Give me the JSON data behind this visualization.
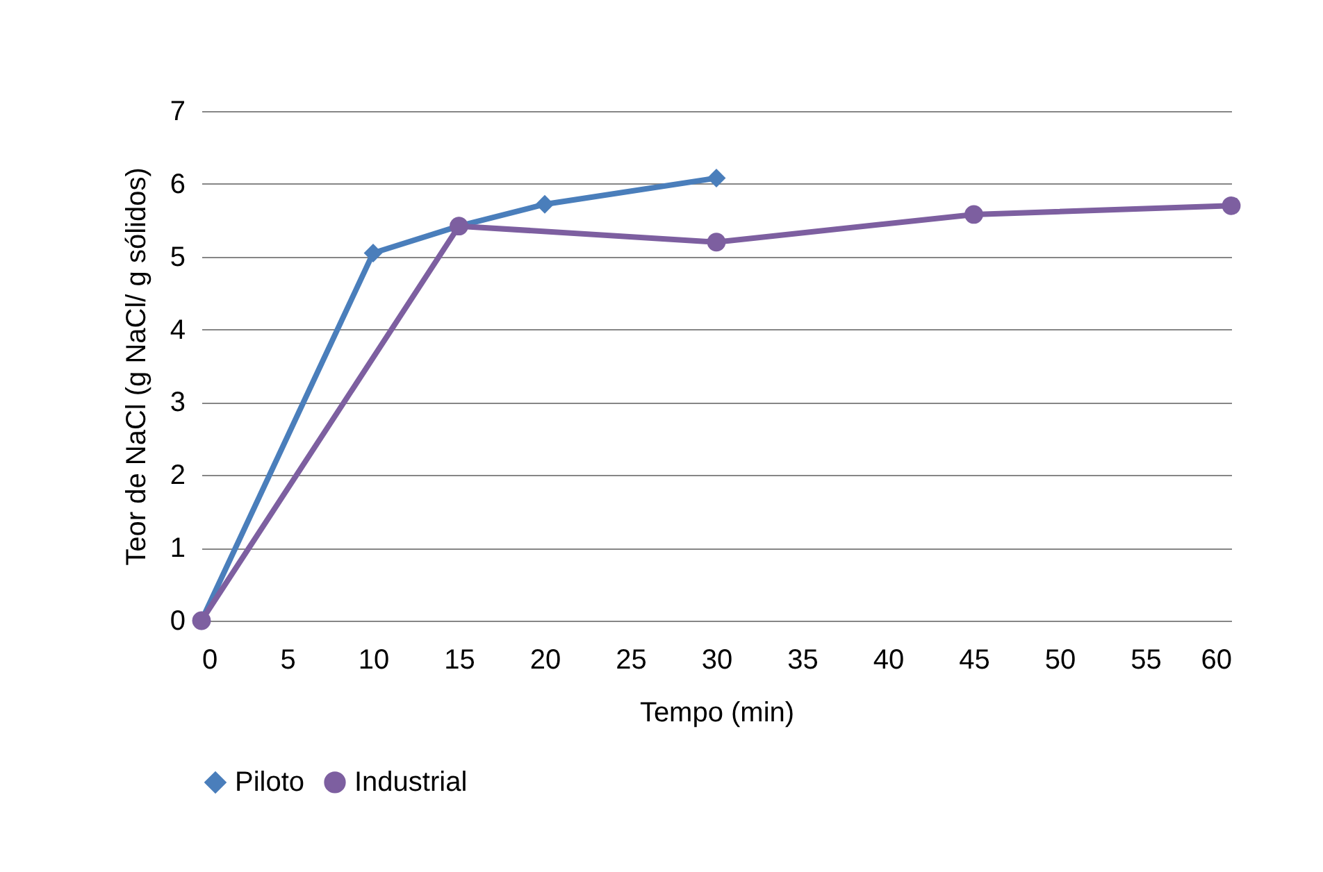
{
  "chart_data": {
    "type": "line",
    "xlabel": "Tempo (min)",
    "ylabel": "Teor de NaCl (g NaCl/ g sólidos)",
    "xlim": [
      0,
      60
    ],
    "xticks": [
      0,
      5,
      10,
      15,
      20,
      25,
      30,
      35,
      40,
      45,
      50,
      55,
      60
    ],
    "ylim": [
      0,
      7
    ],
    "yticks": [
      0,
      1,
      2,
      3,
      4,
      5,
      6,
      7
    ],
    "grid": "y",
    "legend": "bottom",
    "series": [
      {
        "name": "Piloto",
        "color": "#4a7ebb",
        "marker": "diamond",
        "x": [
          0,
          10,
          15,
          20,
          30
        ],
        "values": [
          0,
          5.05,
          5.42,
          5.72,
          6.08
        ]
      },
      {
        "name": "Industrial",
        "color": "#7d5fa0",
        "marker": "circle",
        "x": [
          0,
          15,
          30,
          45,
          60
        ],
        "values": [
          0,
          5.42,
          5.2,
          5.58,
          5.7
        ]
      }
    ]
  }
}
